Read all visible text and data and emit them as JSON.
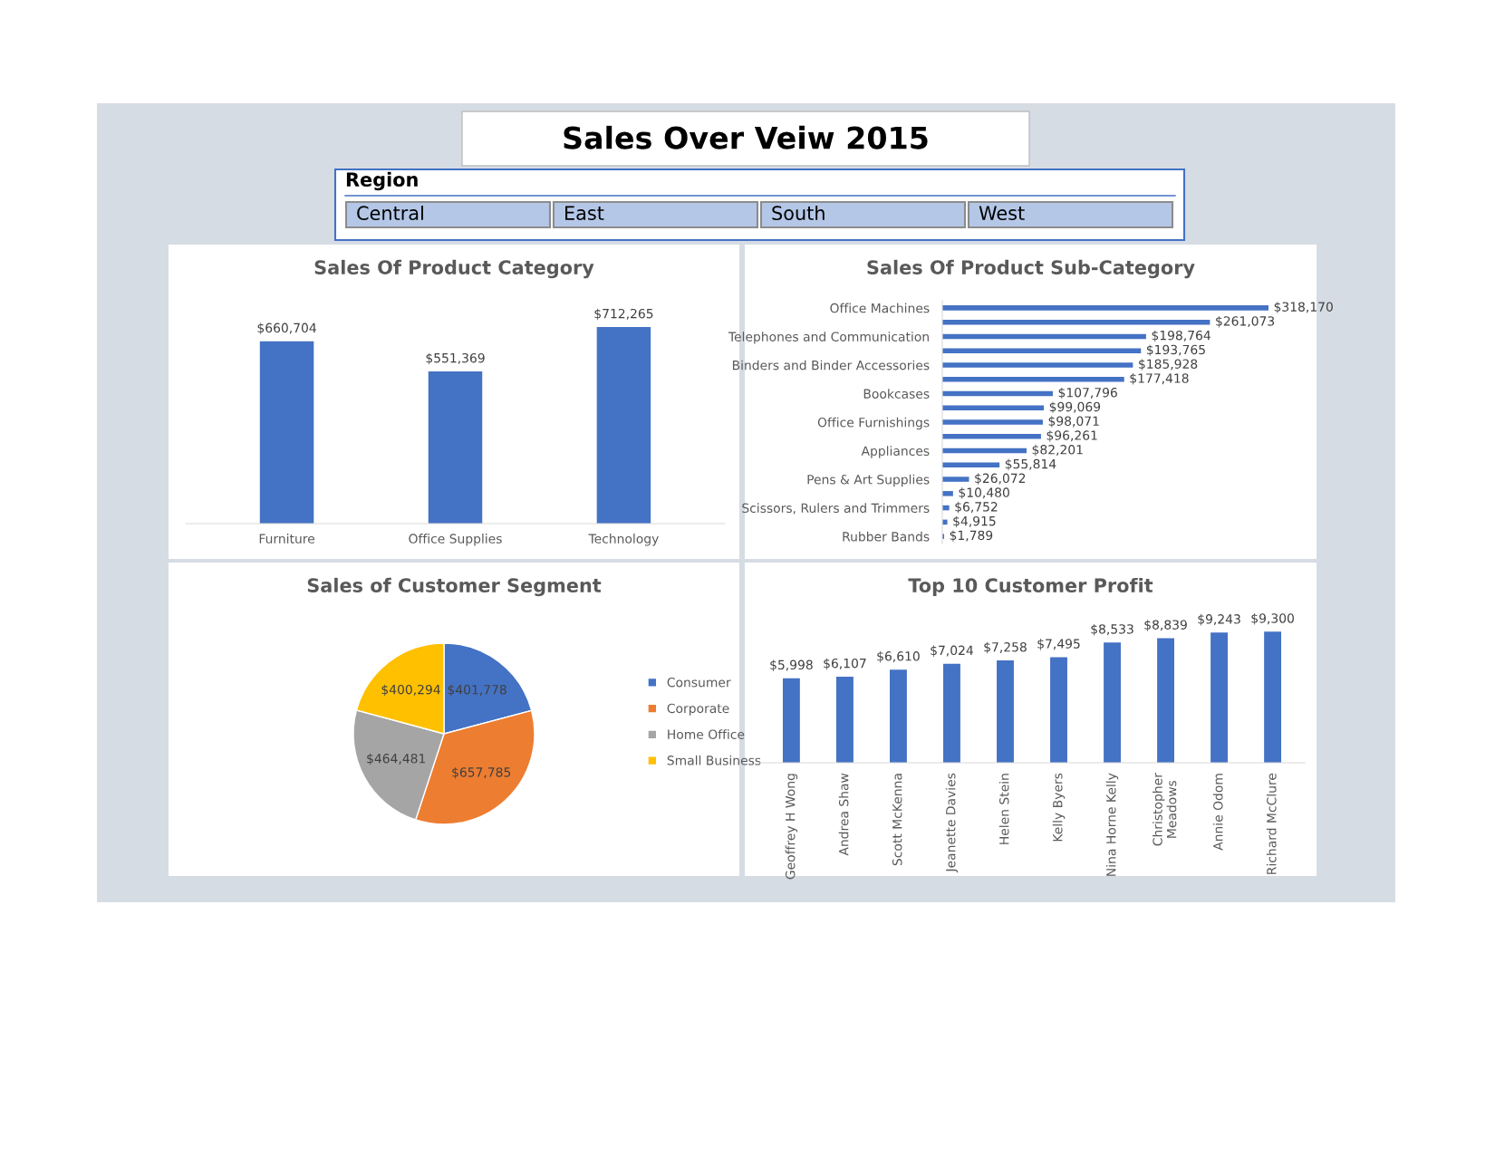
{
  "chart_data": [
    {
      "type": "other",
      "title": "Sales Over Veiw 2015",
      "annotations": [
        "Region",
        "Central",
        "East",
        "South",
        "West"
      ]
    },
    {
      "type": "bar",
      "title": "Sales Of Product Category",
      "categories": [
        "Furniture",
        "Office Supplies",
        "Technology"
      ],
      "values": [
        660704,
        551369,
        712265
      ],
      "value_labels": [
        "$660,704",
        "$551,369",
        "$712,265"
      ],
      "color": "#4472c4",
      "legend": false,
      "grid": false
    },
    {
      "type": "bar",
      "orientation": "horizontal",
      "title": "Sales Of Product Sub-Category",
      "categories": [
        "Office Machines",
        null,
        "Telephones and Communication",
        null,
        "Binders and Binder Accessories",
        null,
        "Bookcases",
        null,
        "Office Furnishings",
        null,
        "Appliances",
        null,
        "Pens & Art Supplies",
        null,
        "Scissors, Rulers and Trimmers",
        null,
        "Rubber Bands"
      ],
      "values": [
        318170,
        261073,
        198764,
        193765,
        185928,
        177418,
        107796,
        99069,
        98071,
        96261,
        82201,
        55814,
        26072,
        10480,
        6752,
        4915,
        1789
      ],
      "value_labels": [
        "$318,170",
        "$261,073",
        "$198,764",
        "$193,765",
        "$185,928",
        "$177,418",
        "$107,796",
        "$99,069",
        "$98,071",
        "$96,261",
        "$82,201",
        "$55,814",
        "$26,072",
        "$10,480",
        "$6,752",
        "$4,915",
        "$1,789"
      ],
      "color": "#4472c4",
      "legend": false,
      "grid": false
    },
    {
      "type": "pie",
      "title": "Sales of Customer Segment",
      "categories": [
        "Consumer",
        "Corporate",
        "Home Office",
        "Small Business"
      ],
      "values": [
        401778,
        657785,
        464481,
        400294
      ],
      "value_labels": [
        "$401,778",
        "$657,785",
        "$464,481",
        "$400,294"
      ],
      "colors": [
        "#4472c4",
        "#ed7d31",
        "#a5a5a5",
        "#ffc000"
      ],
      "legend": "right"
    },
    {
      "type": "bar",
      "title": "Top 10 Customer Profit",
      "categories": [
        "Geoffrey H Wong",
        "Andrea Shaw",
        "Scott McKenna",
        "Jeanette Davies",
        "Helen Stein",
        "Kelly Byers",
        "Nina Horne Kelly",
        "Christopher\nMeadows",
        "Annie Odom",
        "Richard McClure"
      ],
      "values": [
        5998,
        6107,
        6610,
        7024,
        7258,
        7495,
        8533,
        8839,
        9243,
        9300
      ],
      "value_labels": [
        "$5,998",
        "$6,107",
        "$6,610",
        "$7,024",
        "$7,258",
        "$7,495",
        "$8,533",
        "$8,839",
        "$9,243",
        "$9,300"
      ],
      "color": "#4472c4",
      "legend": false,
      "grid": false
    }
  ]
}
